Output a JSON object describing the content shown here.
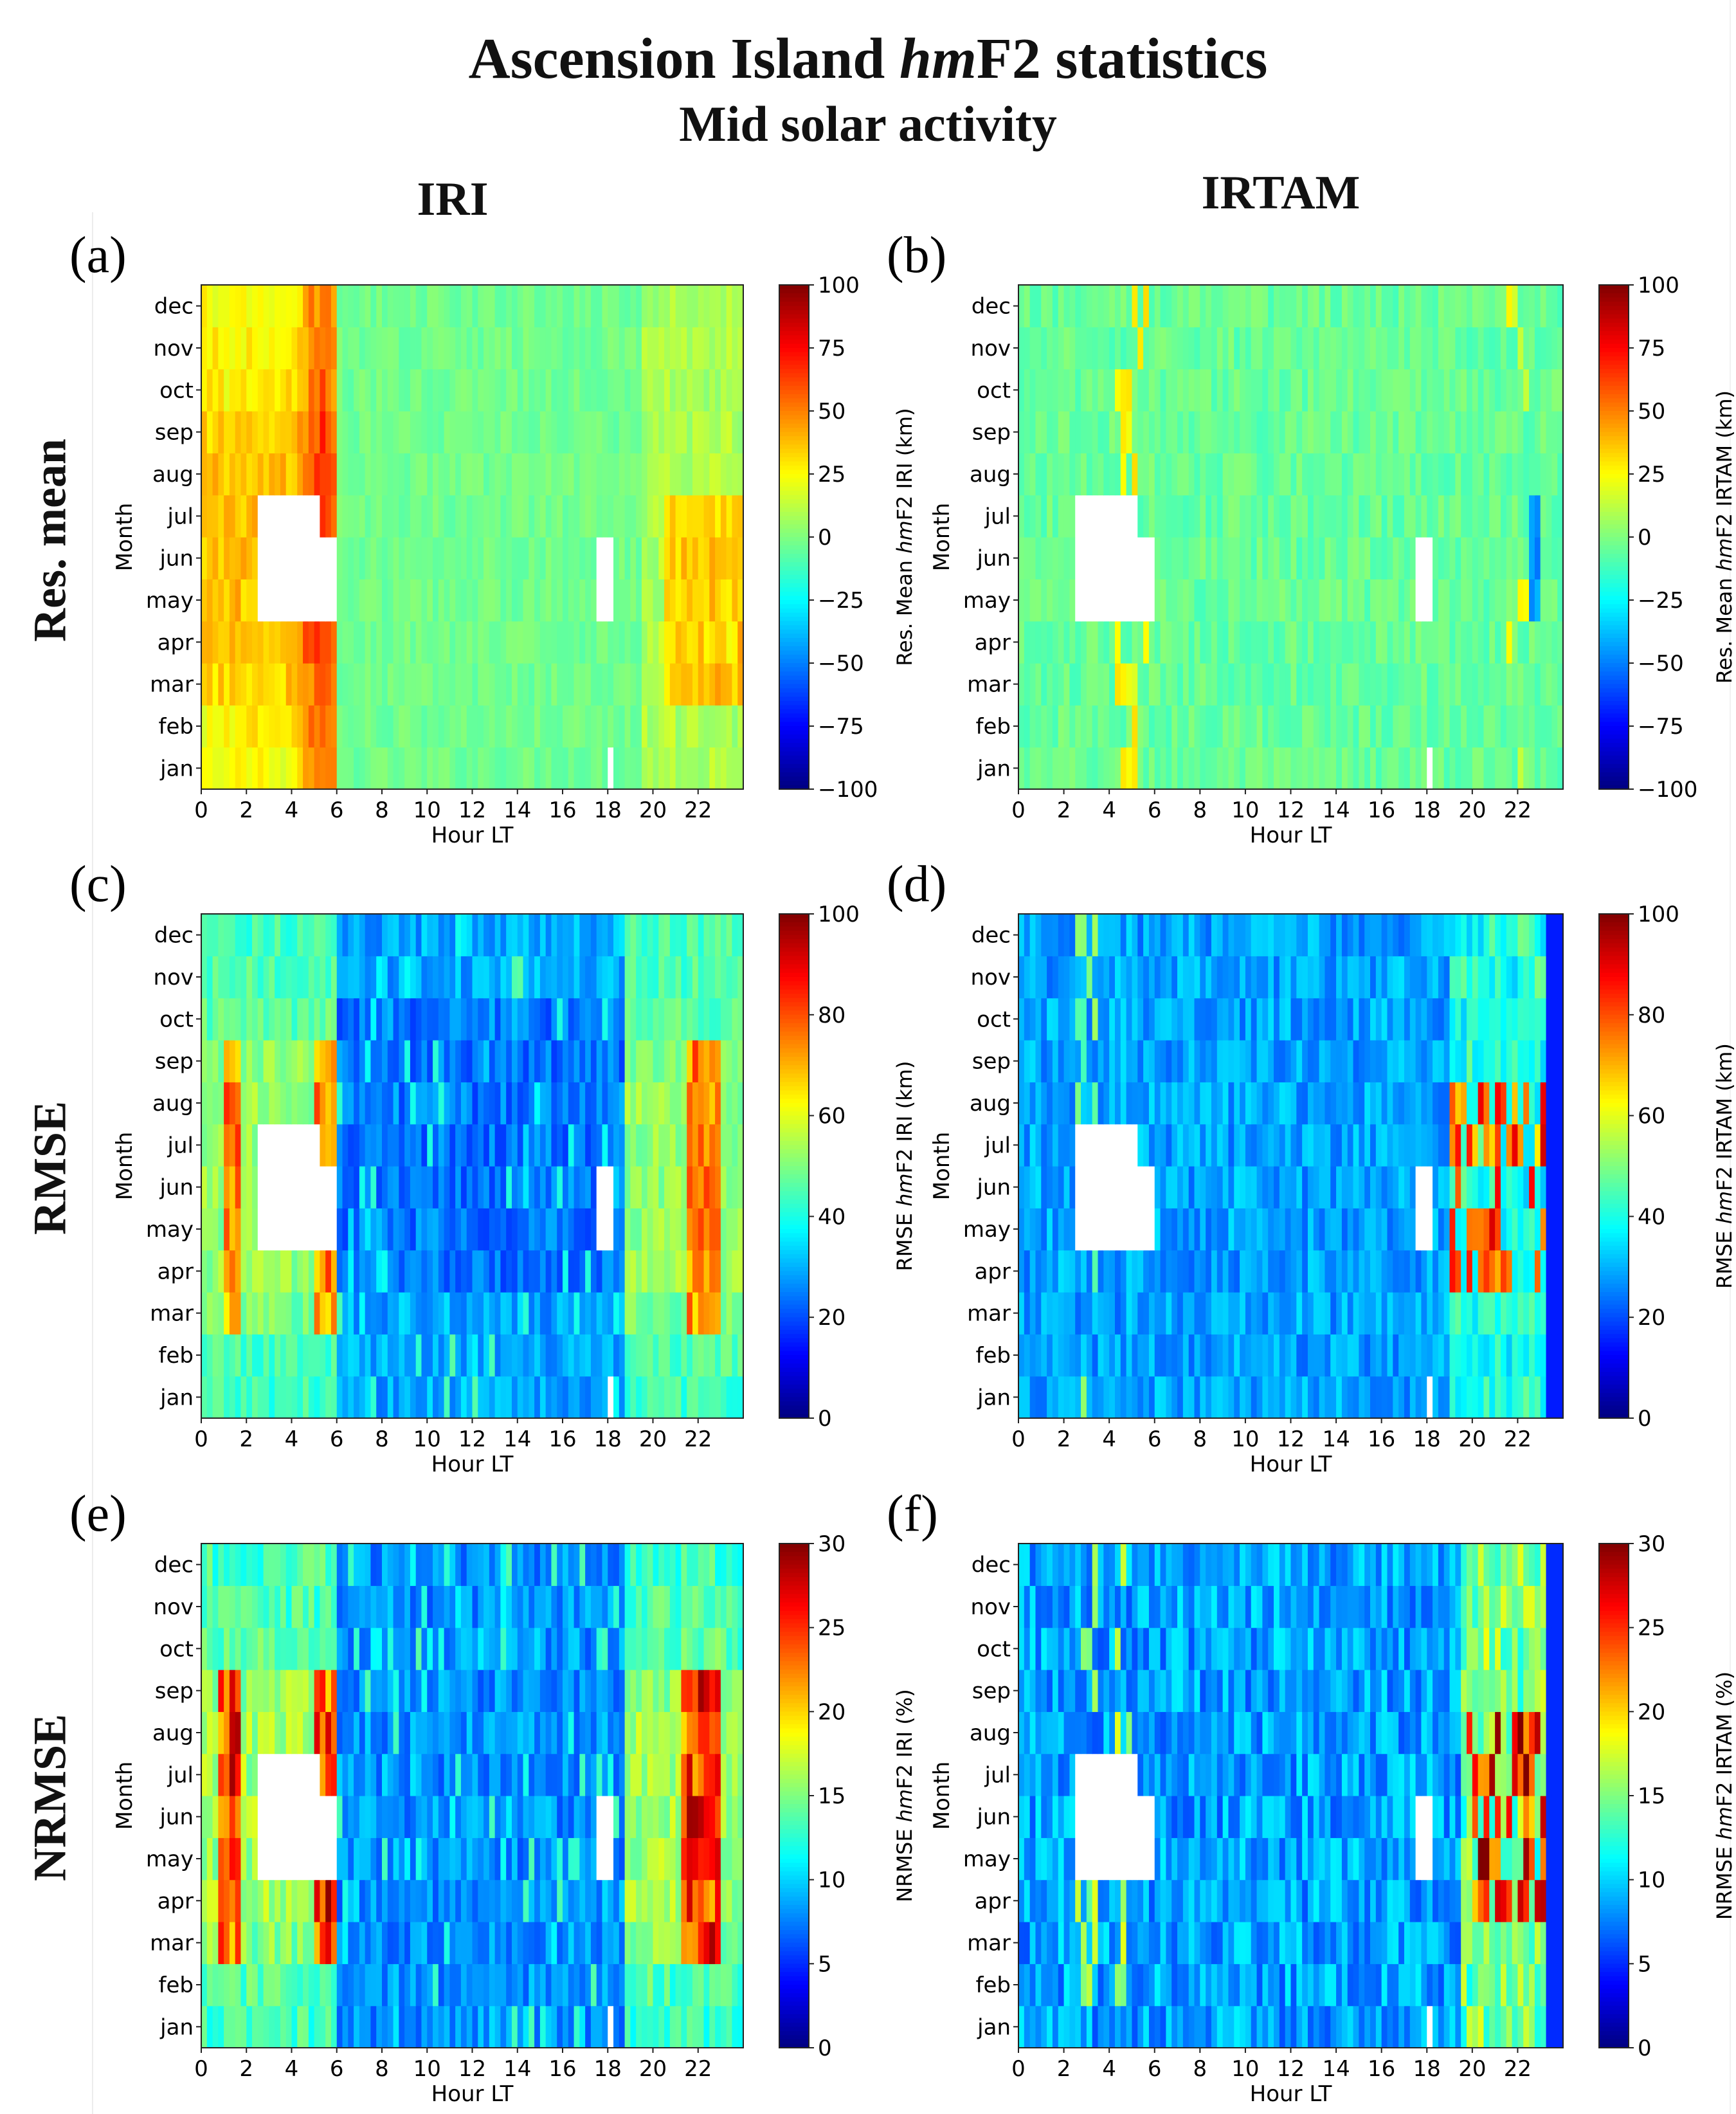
{
  "title_line1_prefix": "Ascension Island ",
  "title_line1_italic": "hm",
  "title_line1_suffix": "F2 statistics",
  "title_line2": "Mid solar activity",
  "column_headers": [
    "IRI",
    "IRTAM"
  ],
  "row_headers": [
    "Res. mean",
    "RMSE",
    "NRMSE"
  ],
  "colormap": "jet",
  "colors": {
    "jet_dark_blue": "#00007f",
    "jet_blue": "#0000ff",
    "jet_cyan": "#00ffff",
    "jet_yellow": "#ffff00",
    "jet_red": "#ff0000",
    "jet_dark_red": "#7f0000",
    "missing": "#ffffff"
  },
  "chart_data": [
    {
      "panel": "(a)",
      "model": "IRI",
      "statistic": "Res. mean",
      "type": "heatmap",
      "xlabel": "Hour LT",
      "ylabel": "Month",
      "xlim": [
        0,
        24
      ],
      "x_ticks": [
        "0",
        "2",
        "4",
        "6",
        "8",
        "10",
        "12",
        "14",
        "16",
        "18",
        "20",
        "22"
      ],
      "y_categories": [
        "jan",
        "feb",
        "mar",
        "apr",
        "may",
        "jun",
        "jul",
        "aug",
        "sep",
        "oct",
        "nov",
        "dec"
      ],
      "colorbar": {
        "label_prefix": "Res. Mean ",
        "label_italic": "hm",
        "label_suffix": "F2 IRI (km)",
        "range": [
          -100,
          100
        ],
        "ticks": [
          "100",
          "75",
          "50",
          "25",
          "0",
          "−25",
          "−50",
          "−75",
          "−100"
        ]
      },
      "approximate_patterns": "Mostly -10 to 10 km in daytime; positive 20-60 km from 0-6 LT (peaking ~5-6 LT in all months, strongest apr-aug); positive 25-50 km at 21-24 LT in mar-jul; missing data around 3-6 LT in may-jul and 18 LT in may-jun and jan."
    },
    {
      "panel": "(b)",
      "model": "IRTAM",
      "statistic": "Res. mean",
      "type": "heatmap",
      "xlabel": "Hour LT",
      "ylabel": "Month",
      "xlim": [
        0,
        24
      ],
      "x_ticks": [
        "0",
        "2",
        "4",
        "6",
        "8",
        "10",
        "12",
        "14",
        "16",
        "18",
        "20",
        "22"
      ],
      "y_categories": [
        "jan",
        "feb",
        "mar",
        "apr",
        "may",
        "jun",
        "jul",
        "aug",
        "sep",
        "oct",
        "nov",
        "dec"
      ],
      "colorbar": {
        "label_prefix": "Res. Mean ",
        "label_italic": "hm",
        "label_suffix": "F2 IRTAM (km)",
        "range": [
          -100,
          100
        ],
        "ticks": [
          "100",
          "75",
          "50",
          "25",
          "0",
          "−25",
          "−50",
          "−75",
          "−100"
        ]
      },
      "approximate_patterns": "Near 0 km (-15 to 15) almost everywhere; isolated positive ~20-40 km streaks near 5 LT and 22 LT; isolated negative ~-45 km near 22-23 LT in may-jul."
    },
    {
      "panel": "(c)",
      "model": "IRI",
      "statistic": "RMSE",
      "type": "heatmap",
      "xlabel": "Hour LT",
      "ylabel": "Month",
      "xlim": [
        0,
        24
      ],
      "x_ticks": [
        "0",
        "2",
        "4",
        "6",
        "8",
        "10",
        "12",
        "14",
        "16",
        "18",
        "20",
        "22"
      ],
      "y_categories": [
        "jan",
        "feb",
        "mar",
        "apr",
        "may",
        "jun",
        "jul",
        "aug",
        "sep",
        "oct",
        "nov",
        "dec"
      ],
      "colorbar": {
        "label_prefix": "RMSE ",
        "label_italic": "hm",
        "label_suffix": "F2 IRI (km)",
        "range": [
          0,
          100
        ],
        "ticks": [
          "100",
          "80",
          "60",
          "40",
          "20",
          "0"
        ]
      },
      "approximate_patterns": "Around 35-50 km at night (0-6 LT and 19-24 LT) with peaks 60-80 km near 1-2, 5-6 and 22-23 LT in mar-sep; daytime 6-18 LT low 15-30 km."
    },
    {
      "panel": "(d)",
      "model": "IRTAM",
      "statistic": "RMSE",
      "type": "heatmap",
      "xlabel": "Hour LT",
      "ylabel": "Month",
      "xlim": [
        0,
        24
      ],
      "x_ticks": [
        "0",
        "2",
        "4",
        "6",
        "8",
        "10",
        "12",
        "14",
        "16",
        "18",
        "20",
        "22"
      ],
      "y_categories": [
        "jan",
        "feb",
        "mar",
        "apr",
        "may",
        "jun",
        "jul",
        "aug",
        "sep",
        "oct",
        "nov",
        "dec"
      ],
      "colorbar": {
        "label_prefix": "RMSE ",
        "label_italic": "hm",
        "label_suffix": "F2 IRTAM (km)",
        "range": [
          0,
          100
        ],
        "ticks": [
          "100",
          "80",
          "60",
          "40",
          "20",
          "0"
        ]
      },
      "approximate_patterns": "Mostly 20-35 km; slightly higher 35-50 km at 19-23 LT with peaks 70-90 km around 22 LT in apr-aug."
    },
    {
      "panel": "(e)",
      "model": "IRI",
      "statistic": "NRMSE",
      "type": "heatmap",
      "xlabel": "Hour LT",
      "ylabel": "Month",
      "xlim": [
        0,
        24
      ],
      "x_ticks": [
        "0",
        "2",
        "4",
        "6",
        "8",
        "10",
        "12",
        "14",
        "16",
        "18",
        "20",
        "22"
      ],
      "y_categories": [
        "jan",
        "feb",
        "mar",
        "apr",
        "may",
        "jun",
        "jul",
        "aug",
        "sep",
        "oct",
        "nov",
        "dec"
      ],
      "colorbar": {
        "label_prefix": "NRMSE ",
        "label_italic": "hm",
        "label_suffix": "F2 IRI (%)",
        "range": [
          0,
          30
        ],
        "ticks": [
          "30",
          "25",
          "20",
          "15",
          "10",
          "5",
          "0"
        ]
      },
      "approximate_patterns": "About 12-18% at night with peaks 22-28% near 1-2, 5-6 and 21-23 LT; daytime 6-18 LT around 5-10%."
    },
    {
      "panel": "(f)",
      "model": "IRTAM",
      "statistic": "NRMSE",
      "type": "heatmap",
      "xlabel": "Hour LT",
      "ylabel": "Month",
      "xlim": [
        0,
        24
      ],
      "x_ticks": [
        "0",
        "2",
        "4",
        "6",
        "8",
        "10",
        "12",
        "14",
        "16",
        "18",
        "20",
        "22"
      ],
      "y_categories": [
        "jan",
        "feb",
        "mar",
        "apr",
        "may",
        "jun",
        "jul",
        "aug",
        "sep",
        "oct",
        "nov",
        "dec"
      ],
      "colorbar": {
        "label_prefix": "NRMSE ",
        "label_italic": "hm",
        "label_suffix": "F2 IRTAM (%)",
        "range": [
          0,
          30
        ],
        "ticks": [
          "30",
          "25",
          "20",
          "15",
          "10",
          "5",
          "0"
        ]
      },
      "approximate_patterns": "Mostly 6-12%; up to 18-28% at 20-23 LT in apr-aug."
    }
  ]
}
